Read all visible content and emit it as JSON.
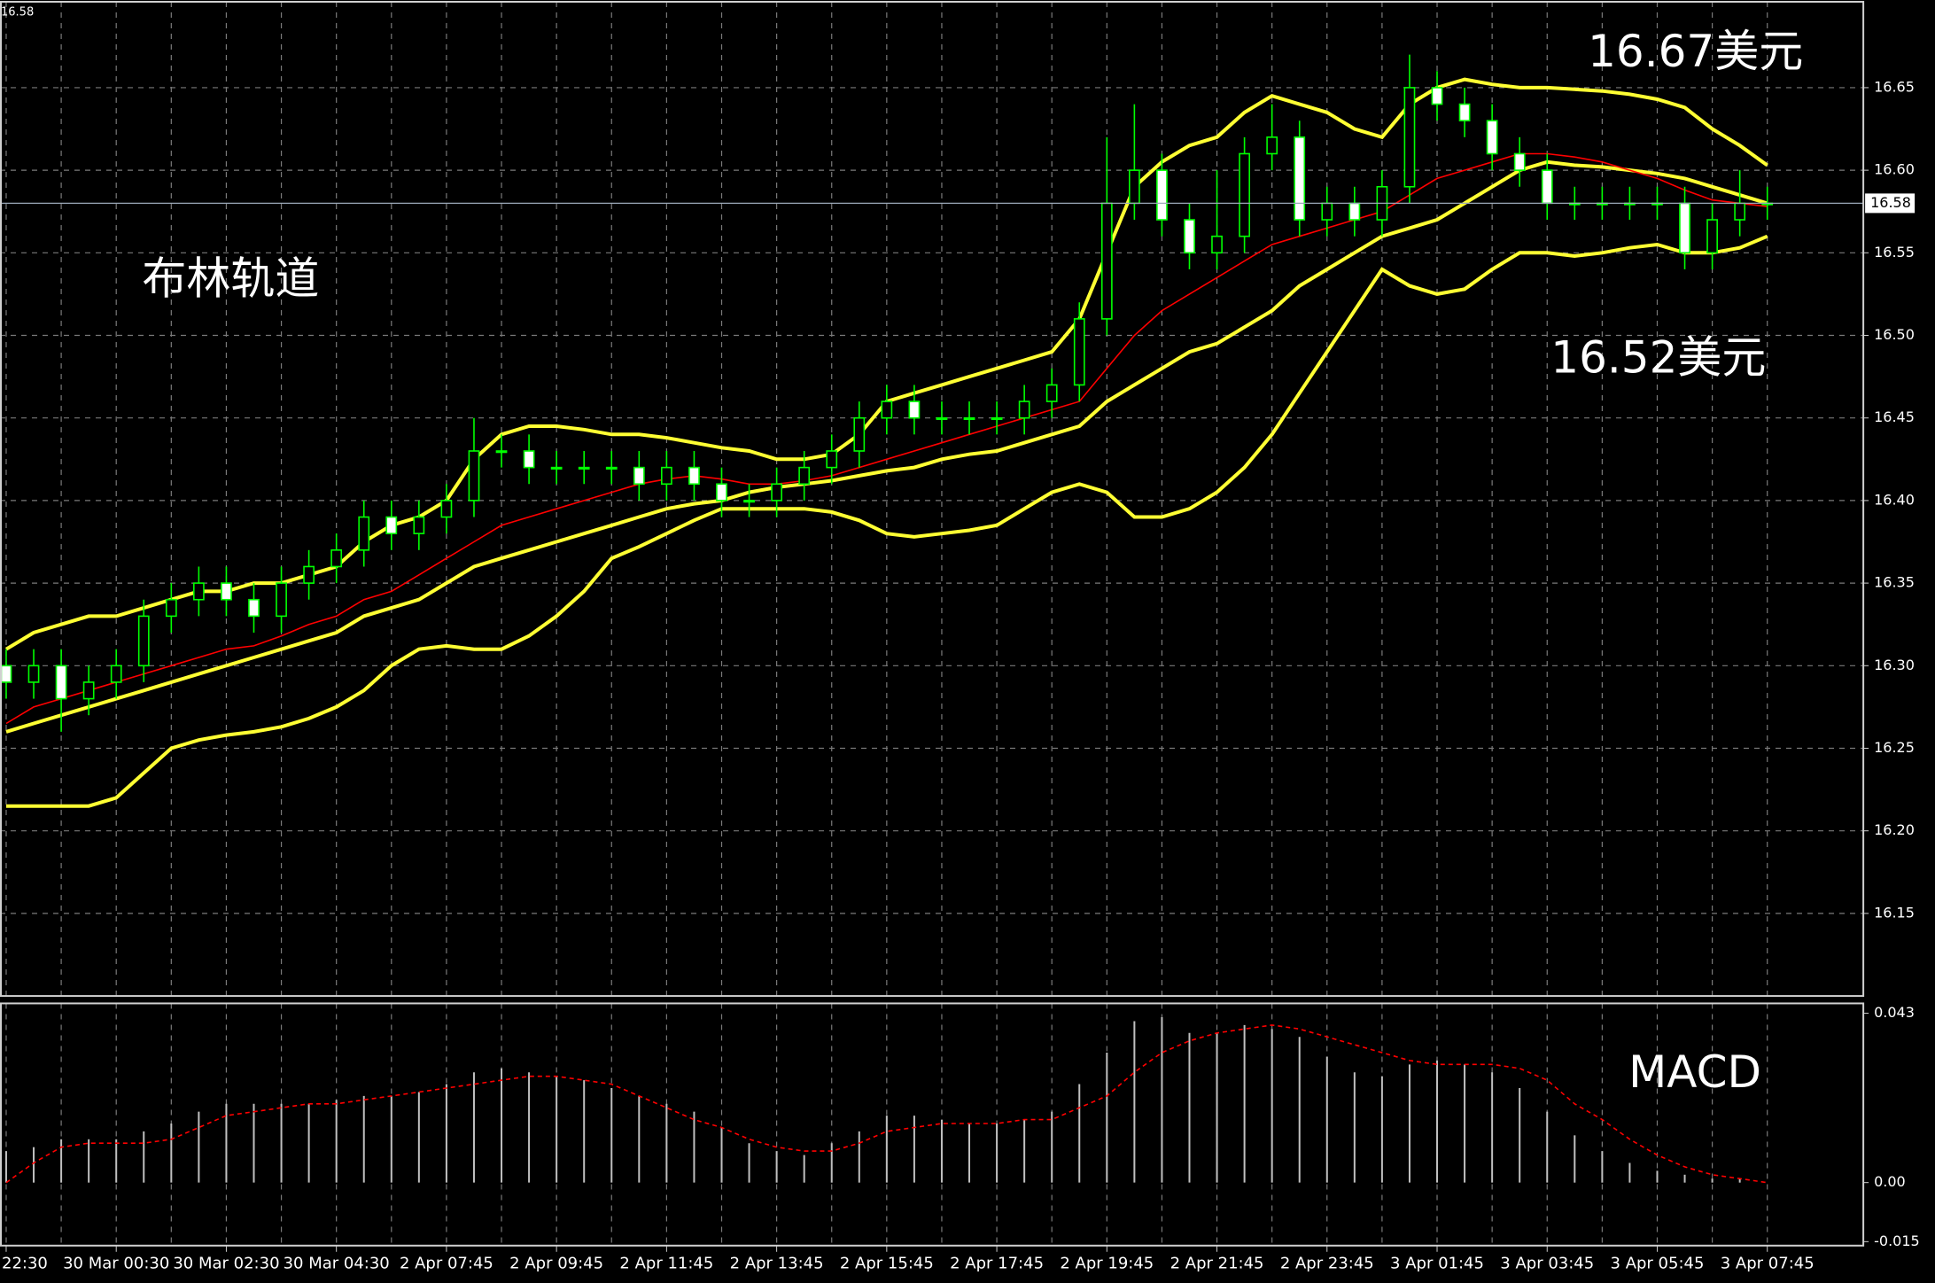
{
  "chart_data": [
    {
      "type": "candlestick",
      "categories": [
        "22:30",
        null,
        null,
        null,
        "30 Mar 00:30",
        null,
        null,
        null,
        "30 Mar 02:30",
        null,
        null,
        null,
        "30 Mar 04:30",
        null,
        null,
        null,
        "2 Apr 07:45",
        null,
        null,
        null,
        "2 Apr 09:45",
        null,
        null,
        null,
        "2 Apr 11:45",
        null,
        null,
        null,
        "2 Apr 13:45",
        null,
        null,
        null,
        "2 Apr 15:45",
        null,
        null,
        null,
        "2 Apr 17:45",
        null,
        null,
        null,
        "2 Apr 19:45",
        null,
        null,
        null,
        "2 Apr 21:45",
        null,
        null,
        null,
        "2 Apr 23:45",
        null,
        null,
        null,
        "3 Apr 01:45",
        null,
        null,
        null,
        "3 Apr 03:45",
        null,
        null,
        null,
        "3 Apr 05:45",
        null,
        null,
        null,
        "3 Apr 07:45"
      ],
      "open": [
        16.3,
        16.29,
        16.3,
        16.28,
        16.29,
        16.3,
        16.33,
        16.34,
        16.35,
        16.34,
        16.33,
        16.35,
        16.36,
        16.37,
        16.39,
        16.38,
        16.39,
        16.4,
        16.43,
        16.43,
        16.42,
        16.42,
        16.42,
        16.42,
        16.41,
        16.42,
        16.41,
        16.4,
        16.4,
        16.41,
        16.42,
        16.43,
        16.45,
        16.46,
        16.45,
        16.45,
        16.45,
        16.45,
        16.46,
        16.47,
        16.51,
        16.58,
        16.6,
        16.57,
        16.55,
        16.56,
        16.61,
        16.62,
        16.57,
        16.58,
        16.57,
        16.59,
        16.65,
        16.64,
        16.63,
        16.61,
        16.6,
        16.58,
        16.58,
        16.58,
        16.58,
        16.58,
        16.55,
        16.57,
        16.58
      ],
      "high": [
        16.31,
        16.31,
        16.31,
        16.3,
        16.31,
        16.34,
        16.35,
        16.36,
        16.36,
        16.35,
        16.36,
        16.37,
        16.38,
        16.4,
        16.4,
        16.4,
        16.41,
        16.45,
        16.44,
        16.44,
        16.43,
        16.43,
        16.43,
        16.43,
        16.43,
        16.43,
        16.42,
        16.41,
        16.42,
        16.43,
        16.44,
        16.46,
        16.47,
        16.47,
        16.46,
        16.46,
        16.46,
        16.47,
        16.48,
        16.52,
        16.62,
        16.64,
        16.61,
        16.58,
        16.6,
        16.62,
        16.64,
        16.63,
        16.59,
        16.59,
        16.6,
        16.67,
        16.66,
        16.65,
        16.64,
        16.62,
        16.61,
        16.59,
        16.59,
        16.59,
        16.59,
        16.59,
        16.58,
        16.6,
        16.59
      ],
      "low": [
        16.28,
        16.28,
        16.26,
        16.27,
        16.28,
        16.29,
        16.32,
        16.33,
        16.33,
        16.32,
        16.32,
        16.34,
        16.35,
        16.36,
        16.37,
        16.37,
        16.38,
        16.39,
        16.42,
        16.41,
        16.41,
        16.41,
        16.41,
        16.4,
        16.4,
        16.4,
        16.39,
        16.39,
        16.39,
        16.4,
        16.41,
        16.42,
        16.44,
        16.44,
        16.44,
        16.44,
        16.44,
        16.44,
        16.45,
        16.46,
        16.5,
        16.57,
        16.56,
        16.54,
        16.54,
        16.55,
        16.6,
        16.56,
        16.56,
        16.56,
        16.56,
        16.58,
        16.63,
        16.62,
        16.6,
        16.59,
        16.57,
        16.57,
        16.57,
        16.57,
        16.57,
        16.54,
        16.54,
        16.56,
        16.57
      ],
      "close": [
        16.29,
        16.3,
        16.28,
        16.29,
        16.3,
        16.33,
        16.34,
        16.35,
        16.34,
        16.33,
        16.35,
        16.36,
        16.37,
        16.39,
        16.38,
        16.39,
        16.4,
        16.43,
        16.43,
        16.42,
        16.42,
        16.42,
        16.42,
        16.41,
        16.42,
        16.41,
        16.4,
        16.4,
        16.41,
        16.42,
        16.43,
        16.45,
        16.46,
        16.45,
        16.45,
        16.45,
        16.45,
        16.46,
        16.47,
        16.51,
        16.58,
        16.6,
        16.57,
        16.55,
        16.56,
        16.61,
        16.62,
        16.57,
        16.58,
        16.57,
        16.59,
        16.65,
        16.64,
        16.63,
        16.61,
        16.6,
        16.58,
        16.58,
        16.58,
        16.58,
        16.58,
        16.55,
        16.57,
        16.58,
        16.58
      ],
      "up_color": "#00ff00",
      "down_color": "#00ff00",
      "up_fill": "#000000",
      "down_fill": "#ffffff",
      "lines": [
        {
          "color": "#ffff33",
          "values": [
            16.31,
            16.32,
            16.325,
            16.33,
            16.33,
            16.335,
            16.34,
            16.345,
            16.345,
            16.35,
            16.35,
            16.355,
            16.36,
            16.375,
            16.385,
            16.39,
            16.4,
            16.425,
            16.44,
            16.445,
            16.445,
            16.443,
            16.44,
            16.44,
            16.438,
            16.435,
            16.432,
            16.43,
            16.425,
            16.425,
            16.428,
            16.44,
            16.46,
            16.465,
            16.47,
            16.475,
            16.48,
            16.485,
            16.49,
            16.51,
            16.55,
            16.59,
            16.605,
            16.615,
            16.62,
            16.635,
            16.645,
            16.64,
            16.635,
            16.625,
            16.62,
            16.64,
            16.65,
            16.655,
            16.652,
            16.65,
            16.65,
            16.649,
            16.648,
            16.646,
            16.643,
            16.638,
            16.625,
            16.615,
            16.603
          ]
        },
        {
          "color": "#ffff33",
          "values": [
            16.26,
            16.265,
            16.27,
            16.275,
            16.28,
            16.285,
            16.29,
            16.295,
            16.3,
            16.305,
            16.31,
            16.315,
            16.32,
            16.33,
            16.335,
            16.34,
            16.35,
            16.36,
            16.365,
            16.37,
            16.375,
            16.38,
            16.385,
            16.39,
            16.395,
            16.398,
            16.4,
            16.405,
            16.408,
            16.41,
            16.412,
            16.415,
            16.418,
            16.42,
            16.425,
            16.428,
            16.43,
            16.435,
            16.44,
            16.445,
            16.46,
            16.47,
            16.48,
            16.49,
            16.495,
            16.505,
            16.515,
            16.53,
            16.54,
            16.55,
            16.56,
            16.565,
            16.57,
            16.58,
            16.59,
            16.6,
            16.605,
            16.603,
            16.602,
            16.6,
            16.598,
            16.595,
            16.59,
            16.585,
            16.58
          ]
        },
        {
          "color": "#ffff33",
          "values": [
            16.215,
            16.215,
            16.215,
            16.215,
            16.22,
            16.235,
            16.25,
            16.255,
            16.258,
            16.26,
            16.263,
            16.268,
            16.275,
            16.285,
            16.3,
            16.31,
            16.312,
            16.31,
            16.31,
            16.318,
            16.33,
            16.345,
            16.365,
            16.372,
            16.38,
            16.388,
            16.395,
            16.395,
            16.395,
            16.395,
            16.393,
            16.388,
            16.38,
            16.378,
            16.38,
            16.382,
            16.385,
            16.395,
            16.405,
            16.41,
            16.405,
            16.39,
            16.39,
            16.395,
            16.405,
            16.42,
            16.44,
            16.465,
            16.49,
            16.515,
            16.54,
            16.53,
            16.525,
            16.528,
            16.54,
            16.55,
            16.55,
            16.548,
            16.55,
            16.553,
            16.555,
            16.55,
            16.55,
            16.553,
            16.56
          ]
        },
        {
          "color": "#ff0000",
          "values": [
            16.265,
            16.275,
            16.28,
            16.285,
            16.29,
            16.295,
            16.3,
            16.305,
            16.31,
            16.312,
            16.318,
            16.325,
            16.33,
            16.34,
            16.345,
            16.355,
            16.365,
            16.375,
            16.385,
            16.39,
            16.395,
            16.4,
            16.405,
            16.41,
            16.413,
            16.415,
            16.413,
            16.41,
            16.41,
            16.412,
            16.415,
            16.42,
            16.425,
            16.43,
            16.435,
            16.44,
            16.445,
            16.45,
            16.455,
            16.46,
            16.48,
            16.5,
            16.515,
            16.525,
            16.535,
            16.545,
            16.555,
            16.56,
            16.565,
            16.57,
            16.575,
            16.585,
            16.595,
            16.6,
            16.605,
            16.61,
            16.61,
            16.608,
            16.605,
            16.6,
            16.595,
            16.588,
            16.582,
            16.58,
            16.578
          ]
        }
      ],
      "ylim": [
        16.1,
        16.702
      ],
      "yticks": [
        16.15,
        {
          "value": 16.2,
          "label": "16.20"
        },
        16.25,
        {
          "value": 16.3,
          "label": "16.30"
        },
        16.35,
        {
          "value": 16.4,
          "label": "16.40"
        },
        16.45,
        {
          "value": 16.5,
          "label": "16.50"
        },
        16.55,
        {
          "value": 16.6,
          "label": "16.60"
        },
        16.65
      ],
      "current_price": 16.58,
      "grid": true,
      "annotations": [
        "布林轨道",
        "16.67美元",
        "16.52美元"
      ]
    },
    {
      "type": "macd",
      "title": "MACD",
      "histogram": {
        "color": "#c0c0c0",
        "values": [
          0.008,
          0.009,
          0.011,
          0.011,
          0.011,
          0.013,
          0.015,
          0.018,
          0.02,
          0.02,
          0.02,
          0.02,
          0.021,
          0.022,
          0.022,
          0.023,
          0.025,
          0.028,
          0.029,
          0.028,
          0.027,
          0.026,
          0.024,
          0.022,
          0.02,
          0.018,
          0.014,
          0.01,
          0.008,
          0.007,
          0.01,
          0.013,
          0.017,
          0.017,
          0.016,
          0.015,
          0.015,
          0.016,
          0.018,
          0.025,
          0.033,
          0.041,
          0.042,
          0.038,
          0.038,
          0.04,
          0.039,
          0.037,
          0.032,
          0.028,
          0.027,
          0.03,
          0.031,
          0.03,
          0.028,
          0.024,
          0.018,
          0.012,
          0.008,
          0.005,
          0.003,
          0.002,
          0.001,
          0.001,
          0
        ]
      },
      "signal": {
        "color": "#ff0000",
        "values": [
          0,
          0.005,
          0.009,
          0.01,
          0.01,
          0.01,
          0.011,
          0.014,
          0.017,
          0.018,
          0.019,
          0.02,
          0.02,
          0.021,
          0.022,
          0.023,
          0.024,
          0.025,
          0.026,
          0.027,
          0.027,
          0.026,
          0.025,
          0.022,
          0.019,
          0.016,
          0.014,
          0.011,
          0.009,
          0.008,
          0.008,
          0.01,
          0.013,
          0.014,
          0.015,
          0.015,
          0.015,
          0.016,
          0.016,
          0.019,
          0.022,
          0.028,
          0.033,
          0.036,
          0.038,
          0.039,
          0.04,
          0.039,
          0.037,
          0.035,
          0.033,
          0.031,
          0.03,
          0.03,
          0.03,
          0.029,
          0.026,
          0.02,
          0.016,
          0.011,
          0.007,
          0.004,
          0.002,
          0.001,
          0
        ]
      },
      "ylim": [
        -0.016,
        0.0455
      ],
      "yticks": [
        0.043,
        {
          "value": 0,
          "label": "0.00"
        },
        -0.015
      ]
    }
  ]
}
